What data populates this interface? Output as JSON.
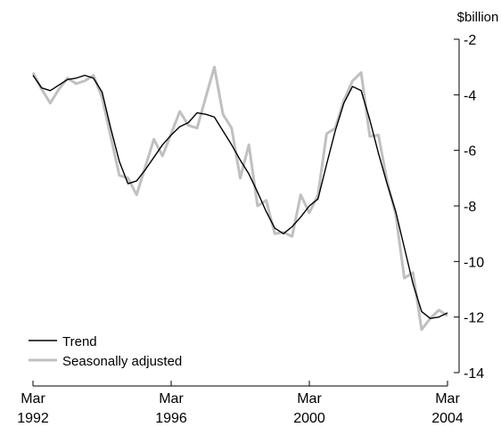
{
  "chart_data": {
    "type": "line",
    "unit_label": "$billion",
    "x_ticks": [
      {
        "month": "Mar",
        "year": "1992",
        "t": 0
      },
      {
        "month": "Mar",
        "year": "1996",
        "t": 16
      },
      {
        "month": "Mar",
        "year": "2000",
        "t": 32
      },
      {
        "month": "Mar",
        "year": "2004",
        "t": 48
      }
    ],
    "y_ticks": [
      "-2",
      "-4",
      "-6",
      "-8",
      "-10",
      "-12",
      "-14"
    ],
    "ylim": [
      -14,
      -2
    ],
    "xlim": [
      "Mar 1992",
      "Mar 2004"
    ],
    "legend_position": "bottom-left",
    "series": [
      {
        "name": "Trend",
        "color": "#000000",
        "values": [
          -3.3,
          -3.75,
          -3.85,
          -3.65,
          -3.45,
          -3.4,
          -3.3,
          -3.4,
          -3.9,
          -5.2,
          -6.4,
          -7.2,
          -7.1,
          -6.7,
          -6.25,
          -5.8,
          -5.45,
          -5.15,
          -5.0,
          -4.65,
          -4.7,
          -4.8,
          -5.3,
          -5.8,
          -6.35,
          -6.85,
          -7.5,
          -8.2,
          -8.8,
          -9.0,
          -8.75,
          -8.4,
          -8.0,
          -7.75,
          -6.5,
          -5.3,
          -4.3,
          -3.7,
          -3.85,
          -4.9,
          -6.1,
          -7.2,
          -8.2,
          -9.5,
          -10.8,
          -11.8,
          -12.05,
          -12.0,
          -11.85
        ]
      },
      {
        "name": "Seasonally adjusted",
        "color": "#c0c0c0",
        "values": [
          -3.2,
          -3.8,
          -4.3,
          -3.8,
          -3.4,
          -3.6,
          -3.5,
          -3.3,
          -4.1,
          -5.5,
          -6.9,
          -7.0,
          -7.6,
          -6.6,
          -5.6,
          -6.2,
          -5.4,
          -4.6,
          -5.1,
          -5.2,
          -4.1,
          -3.0,
          -4.7,
          -5.2,
          -7.0,
          -5.8,
          -8.0,
          -7.8,
          -9.0,
          -8.95,
          -9.1,
          -7.6,
          -8.25,
          -7.6,
          -5.4,
          -5.2,
          -4.2,
          -3.5,
          -3.2,
          -5.5,
          -5.45,
          -7.1,
          -8.3,
          -10.6,
          -10.4,
          -12.45,
          -12.05,
          -11.75,
          -11.95
        ]
      }
    ]
  }
}
